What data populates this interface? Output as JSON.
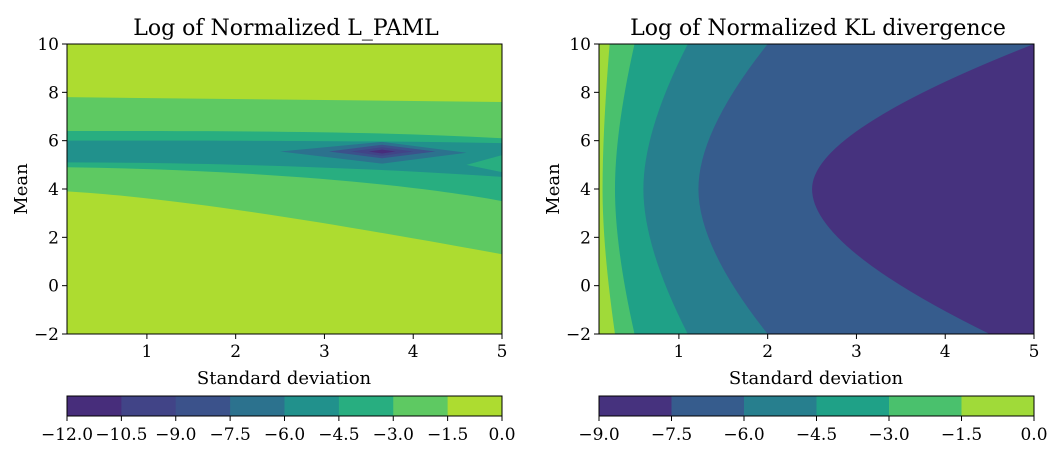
{
  "chart_data": [
    {
      "type": "contour",
      "title": "Log of Normalized L_PAML",
      "xlabel": "Standard deviation",
      "ylabel": "Mean",
      "xlim": [
        0.1,
        5
      ],
      "ylim": [
        -2,
        10
      ],
      "xticks": [
        "1",
        "2",
        "3",
        "4",
        "5"
      ],
      "yticks": [
        "−2",
        "0",
        "2",
        "4",
        "6",
        "8",
        "10"
      ],
      "colorbar": {
        "ticks": [
          "−12.0",
          "−10.5",
          "−9.0",
          "−7.5",
          "−6.0",
          "−4.5",
          "−3.0",
          "−1.5",
          "0.0"
        ],
        "levels": [
          -12.0,
          -10.5,
          -9.0,
          -7.5,
          -6.0,
          -4.5,
          -3.0,
          -1.5,
          0.0
        ],
        "colors": [
          "#472d7b",
          "#414487",
          "#3b528b",
          "#2c728e",
          "#21918c",
          "#28ae80",
          "#5ec962",
          "#addc30"
        ]
      },
      "regions": [
        {
          "level_index": 7,
          "y_range": [
            7.8,
            10
          ]
        },
        {
          "level_index": 6,
          "y_range": [
            6.4,
            7.8
          ]
        },
        {
          "level_index": 5,
          "y_range": [
            6.0,
            6.4
          ]
        },
        {
          "level_index": 4,
          "y_range": [
            5.1,
            6.0
          ]
        },
        {
          "level_index": 5,
          "y_range": [
            4.8,
            5.1
          ]
        },
        {
          "level_index": 6,
          "y_range": [
            3.9,
            4.9
          ]
        },
        {
          "level_index": 7,
          "y_range": [
            -2,
            3.9
          ]
        },
        {
          "level_index": 3,
          "center": [
            3.65,
            5.55
          ]
        },
        {
          "level_index": 0,
          "center": [
            3.65,
            5.55
          ]
        }
      ]
    },
    {
      "type": "contour",
      "title": "Log of Normalized KL divergence",
      "xlabel": "Standard deviation",
      "ylabel": "Mean",
      "xlim": [
        0.1,
        5
      ],
      "ylim": [
        -2,
        10
      ],
      "xticks": [
        "1",
        "2",
        "3",
        "4",
        "5"
      ],
      "yticks": [
        "−2",
        "0",
        "2",
        "4",
        "6",
        "8",
        "10"
      ],
      "colorbar": {
        "ticks": [
          "−9.0",
          "−7.5",
          "−6.0",
          "−4.5",
          "−3.0",
          "−1.5",
          "0.0"
        ],
        "levels": [
          -9.0,
          -7.5,
          -6.0,
          -4.5,
          -3.0,
          -1.5,
          0.0
        ],
        "colors": [
          "#46327e",
          "#365c8d",
          "#277f8e",
          "#1fa187",
          "#4ac16d",
          "#a0da39"
        ]
      },
      "boundaries": [
        {
          "level": -1.5,
          "vertex_x": 0.14,
          "edge_x_at_ylim": [
            0.28,
            0.22
          ]
        },
        {
          "level": -3.0,
          "vertex_x": 0.28,
          "edge_x_at_ylim": [
            0.5,
            0.5
          ]
        },
        {
          "level": -4.5,
          "vertex_x": 0.6,
          "edge_x_at_ylim": [
            1.1,
            1.1
          ]
        },
        {
          "level": -6.0,
          "vertex_x": 1.22,
          "edge_x_at_ylim": [
            2.0,
            2.0
          ]
        },
        {
          "level": -7.5,
          "vertex_x": 2.5,
          "edge_x_at_ylim": [
            4.5,
            5.0
          ]
        }
      ]
    }
  ]
}
